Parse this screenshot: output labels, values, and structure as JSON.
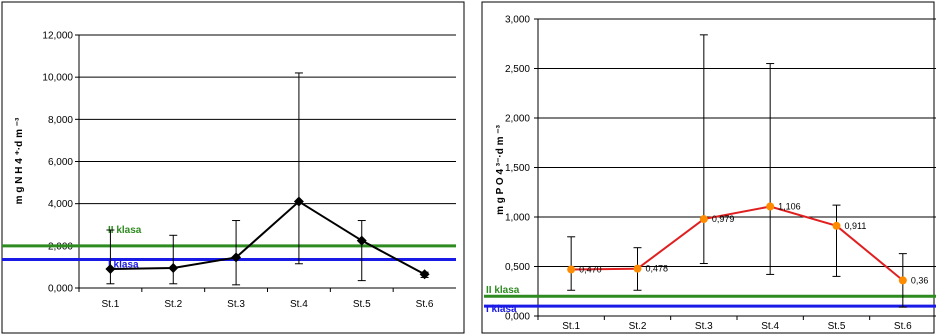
{
  "chart_data": [
    {
      "type": "line",
      "categories": [
        "St.1",
        "St.2",
        "St.3",
        "St.4",
        "St.5",
        "St.6"
      ],
      "series": [
        {
          "values": [
            0.9,
            0.95,
            1.45,
            4.1,
            2.25,
            0.65
          ],
          "error_low": [
            0.2,
            0.2,
            0.15,
            1.15,
            0.35,
            0.5
          ],
          "error_high": [
            2.75,
            2.5,
            3.2,
            10.2,
            3.2,
            0.75
          ],
          "color": "#000000",
          "marker": "diamond"
        }
      ],
      "reference_lines": [
        {
          "label": "II klasa",
          "value": 2.0,
          "color": "#2e8b20"
        },
        {
          "label": "I klasa",
          "value": 1.35,
          "color": "#1a1ae6"
        }
      ],
      "y_tick_labels": [
        "0,000",
        "2,000",
        "4,000",
        "6,000",
        "8,000",
        "10,000",
        "12,000"
      ],
      "ylabel": "m g N H 4 ⁺·d m ⁻³",
      "ylim": [
        0,
        12
      ],
      "grid": true,
      "legend": "none"
    },
    {
      "type": "line",
      "categories": [
        "St.1",
        "St.2",
        "St.3",
        "St.4",
        "St.5",
        "St.6"
      ],
      "series": [
        {
          "values": [
            0.47,
            0.478,
            0.979,
            1.106,
            0.911,
            0.36
          ],
          "data_labels": [
            "0,470",
            "0,478",
            "0,979",
            "1,106",
            "0,911",
            "0,36"
          ],
          "error_low": [
            0.26,
            0.26,
            0.53,
            0.42,
            0.4,
            0.09
          ],
          "error_high": [
            0.8,
            0.69,
            2.84,
            2.55,
            1.12,
            0.63
          ],
          "color": "#e02020",
          "marker_color": "#ff8c00",
          "marker": "circle"
        }
      ],
      "reference_lines": [
        {
          "label": "II klasa",
          "value": 0.2,
          "color": "#2e8b20"
        },
        {
          "label": "I klasa",
          "value": 0.1,
          "color": "#1a1ae6"
        }
      ],
      "y_tick_labels": [
        "0,000",
        "0,500",
        "1,000",
        "1,500",
        "2,000",
        "2,500",
        "3,000"
      ],
      "ylabel": "m g P O 4 ³⁻·d m ⁻³",
      "ylim": [
        0,
        3
      ],
      "grid": true,
      "legend": "none"
    }
  ]
}
